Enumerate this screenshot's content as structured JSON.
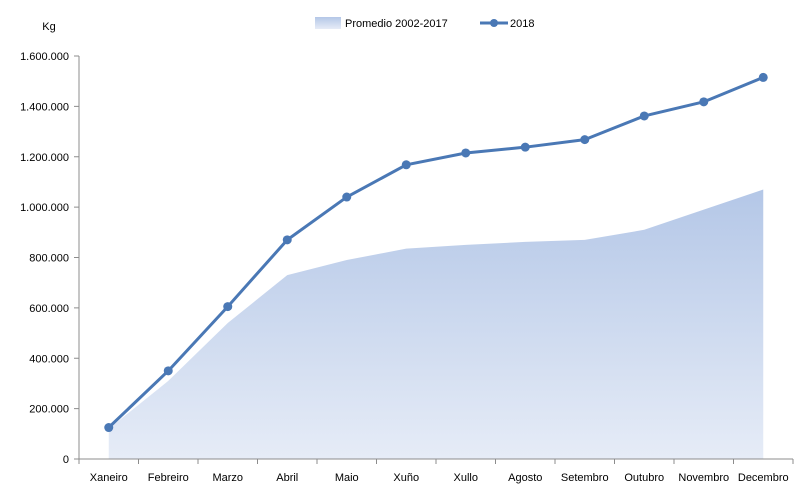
{
  "chart_data": {
    "type": "area+line",
    "ylabel": "Kg",
    "ylim": [
      0,
      1600000
    ],
    "yticks": [
      {
        "value": 0,
        "label": "0"
      },
      {
        "value": 200000,
        "label": "200.000"
      },
      {
        "value": 400000,
        "label": "400.000"
      },
      {
        "value": 600000,
        "label": "600.000"
      },
      {
        "value": 800000,
        "label": "800.000"
      },
      {
        "value": 1000000,
        "label": "1.000.000"
      },
      {
        "value": 1200000,
        "label": "1.200.000"
      },
      {
        "value": 1400000,
        "label": "1.400.000"
      },
      {
        "value": 1600000,
        "label": "1.600.000"
      }
    ],
    "categories": [
      "Xaneiro",
      "Febreiro",
      "Marzo",
      "Abril",
      "Maio",
      "Xuño",
      "Xullo",
      "Agosto",
      "Setembro",
      "Outubro",
      "Novembro",
      "Decembro"
    ],
    "series": [
      {
        "name": "Promedio 2002-2017",
        "kind": "area",
        "values": [
          120000,
          310000,
          540000,
          730000,
          790000,
          835000,
          850000,
          862000,
          870000,
          910000,
          990000,
          1070000
        ]
      },
      {
        "name": "2018",
        "kind": "line",
        "values": [
          125000,
          350000,
          605000,
          870000,
          1040000,
          1168000,
          1215000,
          1238000,
          1268000,
          1362000,
          1418000,
          1515000
        ]
      }
    ],
    "legend": "top-center",
    "grid": false,
    "colors": {
      "area_top": "#b4c7e7",
      "area_bottom": "#e6ecf7",
      "line": "#4a78b5",
      "axis": "#8c8c8c"
    }
  }
}
